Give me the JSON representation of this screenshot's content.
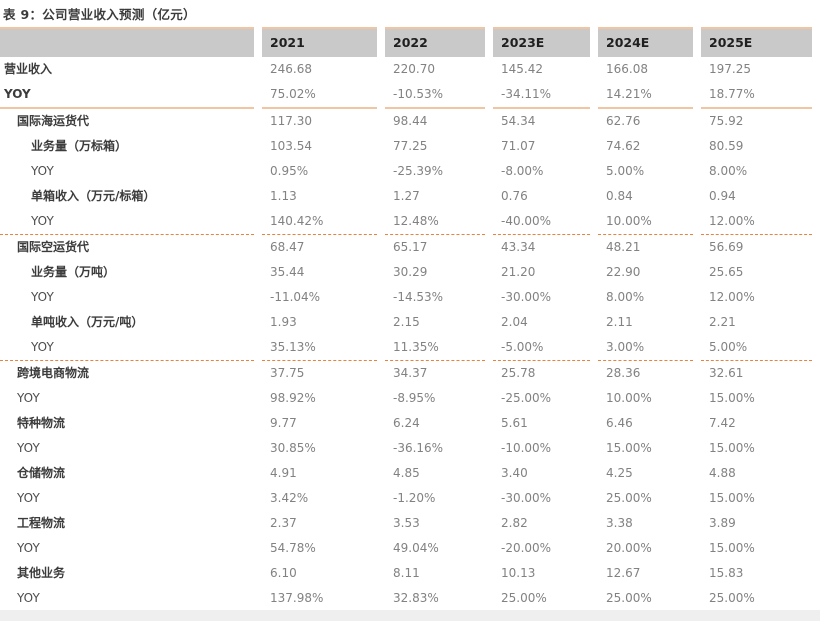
{
  "title": "表 9：公司营业收入预测（亿元）",
  "colors": {
    "header_background": "#c9c9c9",
    "accent_solid_light": "#f2c5a2",
    "accent_dashed": "#e9823d",
    "accent_solid_strong": "#ed7d31",
    "label_text": "#3c3c3c",
    "value_text": "#828282"
  },
  "chart_data": {
    "type": "table",
    "title": "表 9：公司营业收入预测（亿元）",
    "columns": [
      "",
      "2021",
      "2022",
      "2023E",
      "2024E",
      "2025E"
    ],
    "rows": [
      {
        "label": "营业收入",
        "indent": 0,
        "bold": true,
        "sep": "none",
        "values": [
          "246.68",
          "220.70",
          "145.42",
          "166.08",
          "197.25"
        ]
      },
      {
        "label": "YOY",
        "indent": 0,
        "bold": true,
        "sep": "solid-light",
        "values": [
          "75.02%",
          "-10.53%",
          "-34.11%",
          "14.21%",
          "18.77%"
        ]
      },
      {
        "label": "国际海运货代",
        "indent": 1,
        "bold": true,
        "sep": "none",
        "values": [
          "117.30",
          "98.44",
          "54.34",
          "62.76",
          "75.92"
        ]
      },
      {
        "label": "业务量（万标箱）",
        "indent": 2,
        "bold": true,
        "sep": "none",
        "values": [
          "103.54",
          "77.25",
          "71.07",
          "74.62",
          "80.59"
        ]
      },
      {
        "label": "YOY",
        "indent": 2,
        "bold": false,
        "sep": "none",
        "values": [
          "0.95%",
          "-25.39%",
          "-8.00%",
          "5.00%",
          "8.00%"
        ]
      },
      {
        "label": "单箱收入（万元/标箱）",
        "indent": 2,
        "bold": true,
        "sep": "none",
        "values": [
          "1.13",
          "1.27",
          "0.76",
          "0.84",
          "0.94"
        ]
      },
      {
        "label": "YOY",
        "indent": 2,
        "bold": false,
        "sep": "dashed",
        "values": [
          "140.42%",
          "12.48%",
          "-40.00%",
          "10.00%",
          "12.00%"
        ]
      },
      {
        "label": "国际空运货代",
        "indent": 1,
        "bold": true,
        "sep": "none",
        "values": [
          "68.47",
          "65.17",
          "43.34",
          "48.21",
          "56.69"
        ]
      },
      {
        "label": "业务量（万吨）",
        "indent": 2,
        "bold": true,
        "sep": "none",
        "values": [
          "35.44",
          "30.29",
          "21.20",
          "22.90",
          "25.65"
        ]
      },
      {
        "label": "YOY",
        "indent": 2,
        "bold": false,
        "sep": "none",
        "values": [
          "-11.04%",
          "-14.53%",
          "-30.00%",
          "8.00%",
          "12.00%"
        ]
      },
      {
        "label": "单吨收入（万元/吨）",
        "indent": 2,
        "bold": true,
        "sep": "none",
        "values": [
          "1.93",
          "2.15",
          "2.04",
          "2.11",
          "2.21"
        ]
      },
      {
        "label": "YOY",
        "indent": 2,
        "bold": false,
        "sep": "dashed",
        "values": [
          "35.13%",
          "11.35%",
          "-5.00%",
          "3.00%",
          "5.00%"
        ]
      },
      {
        "label": "跨境电商物流",
        "indent": 1,
        "bold": true,
        "sep": "none",
        "values": [
          "37.75",
          "34.37",
          "25.78",
          "28.36",
          "32.61"
        ]
      },
      {
        "label": "YOY",
        "indent": 1,
        "bold": false,
        "sep": "none",
        "values": [
          "98.92%",
          "-8.95%",
          "-25.00%",
          "10.00%",
          "15.00%"
        ]
      },
      {
        "label": "特种物流",
        "indent": 1,
        "bold": true,
        "sep": "none",
        "values": [
          "9.77",
          "6.24",
          "5.61",
          "6.46",
          "7.42"
        ]
      },
      {
        "label": "YOY",
        "indent": 1,
        "bold": false,
        "sep": "none",
        "values": [
          "30.85%",
          "-36.16%",
          "-10.00%",
          "15.00%",
          "15.00%"
        ]
      },
      {
        "label": "仓储物流",
        "indent": 1,
        "bold": true,
        "sep": "none",
        "values": [
          "4.91",
          "4.85",
          "3.40",
          "4.25",
          "4.88"
        ]
      },
      {
        "label": "YOY",
        "indent": 1,
        "bold": false,
        "sep": "none",
        "values": [
          "3.42%",
          "-1.20%",
          "-30.00%",
          "25.00%",
          "15.00%"
        ]
      },
      {
        "label": "工程物流",
        "indent": 1,
        "bold": true,
        "sep": "none",
        "values": [
          "2.37",
          "3.53",
          "2.82",
          "3.38",
          "3.89"
        ]
      },
      {
        "label": "YOY",
        "indent": 1,
        "bold": false,
        "sep": "none",
        "values": [
          "54.78%",
          "49.04%",
          "-20.00%",
          "20.00%",
          "15.00%"
        ]
      },
      {
        "label": "其他业务",
        "indent": 1,
        "bold": true,
        "sep": "none",
        "values": [
          "6.10",
          "8.11",
          "10.13",
          "12.67",
          "15.83"
        ]
      },
      {
        "label": "YOY",
        "indent": 1,
        "bold": false,
        "sep": "solid-strong",
        "values": [
          "137.98%",
          "32.83%",
          "25.00%",
          "25.00%",
          "25.00%"
        ]
      }
    ]
  }
}
